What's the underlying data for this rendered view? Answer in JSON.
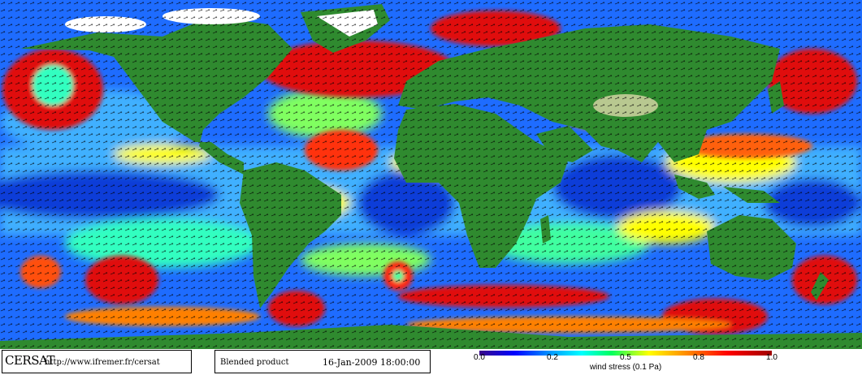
{
  "footer": {
    "logo": "CERSAT",
    "url": "http://www.ifremer.fr/cersat",
    "product": "Blended product",
    "datetime": "16-Jan-2009 18:00:00"
  },
  "colorbar": {
    "ticks": [
      "0.0",
      "0.2",
      "0.5",
      "0.8",
      "1.0"
    ],
    "label": "wind stress (0.1 Pa)",
    "colors": [
      "#3a0a8a",
      "#0000ff",
      "#00a0ff",
      "#00ffff",
      "#00ff60",
      "#ffff00",
      "#ff8000",
      "#ff0000",
      "#a00000"
    ]
  },
  "map": {
    "land_color": "#2f8a2f",
    "ice_color": "#ffffff",
    "ocean_low_color": "#0a3cd8",
    "ocean_high_color": "#e01010"
  }
}
